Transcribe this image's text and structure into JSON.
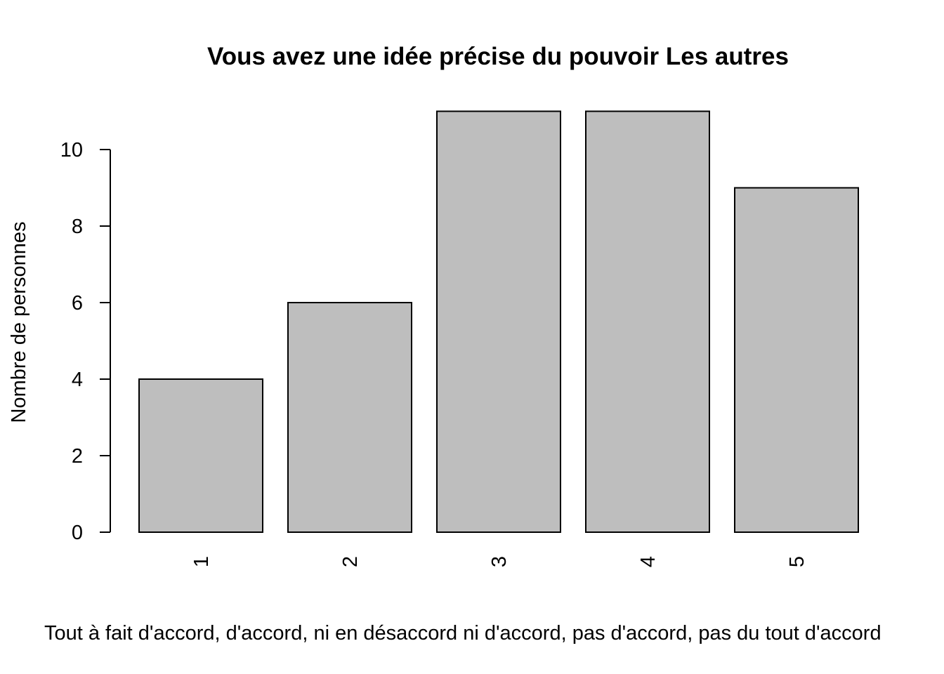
{
  "chart_data": {
    "type": "bar",
    "title": "Vous avez une idée précise du pouvoir Les autres",
    "xlabel": "Tout à fait d'accord, d'accord, ni en désaccord ni d'accord, pas d'accord, pas du tout d'accord",
    "ylabel": "Nombre de personnes",
    "categories": [
      "1",
      "2",
      "3",
      "4",
      "5"
    ],
    "values": [
      4,
      6,
      11,
      11,
      9
    ],
    "yticks": [
      0,
      2,
      4,
      6,
      8,
      10
    ],
    "ylim": [
      0,
      11
    ],
    "bar_color": "#bebebe",
    "grid": false
  }
}
